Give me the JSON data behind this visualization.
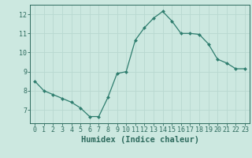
{
  "x": [
    0,
    1,
    2,
    3,
    4,
    5,
    6,
    7,
    8,
    9,
    10,
    11,
    12,
    13,
    14,
    15,
    16,
    17,
    18,
    19,
    20,
    21,
    22,
    23
  ],
  "y": [
    8.5,
    8.0,
    7.8,
    7.6,
    7.4,
    7.1,
    6.65,
    6.65,
    7.65,
    8.9,
    9.0,
    10.65,
    11.3,
    11.8,
    12.15,
    11.65,
    11.0,
    11.0,
    10.95,
    10.45,
    9.65,
    9.45,
    9.15,
    9.15
  ],
  "line_color": "#2e7d6e",
  "marker": "D",
  "marker_size": 2.0,
  "bg_color": "#cce8e0",
  "grid_color": "#b8d8d0",
  "axis_color": "#2e6b5e",
  "xlabel": "Humidex (Indice chaleur)",
  "xlim": [
    -0.5,
    23.5
  ],
  "ylim": [
    6.3,
    12.5
  ],
  "yticks": [
    7,
    8,
    9,
    10,
    11,
    12
  ],
  "xticks": [
    0,
    1,
    2,
    3,
    4,
    5,
    6,
    7,
    8,
    9,
    10,
    11,
    12,
    13,
    14,
    15,
    16,
    17,
    18,
    19,
    20,
    21,
    22,
    23
  ],
  "tick_label_size": 6.0,
  "xlabel_size": 7.5,
  "linewidth": 0.9
}
